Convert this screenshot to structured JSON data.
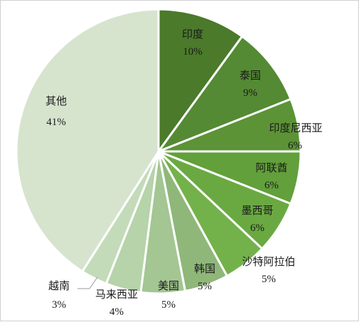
{
  "chart_data": {
    "type": "pie",
    "title": "",
    "slices": [
      {
        "label": "印度",
        "value": 10,
        "value_label": "10%",
        "color": "#4a7a2a"
      },
      {
        "label": "泰国",
        "value": 9,
        "value_label": "9%",
        "color": "#548a33"
      },
      {
        "label": "印度尼西亚",
        "value": 6,
        "value_label": "6%",
        "color": "#5b9336"
      },
      {
        "label": "阿联酋",
        "value": 6,
        "value_label": "6%",
        "color": "#62a03b"
      },
      {
        "label": "墨西哥",
        "value": 6,
        "value_label": "6%",
        "color": "#6aa942"
      },
      {
        "label": "沙特阿拉伯",
        "value": 5,
        "value_label": "5%",
        "color": "#73b24a"
      },
      {
        "label": "韩国",
        "value": 5,
        "value_label": "5%",
        "color": "#8fb77a"
      },
      {
        "label": "美国",
        "value": 5,
        "value_label": "5%",
        "color": "#a3c692"
      },
      {
        "label": "马来西亚",
        "value": 4,
        "value_label": "4%",
        "color": "#b6d3aa"
      },
      {
        "label": "越南",
        "value": 3,
        "value_label": "3%",
        "color": "#c3dbb9"
      },
      {
        "label": "其他",
        "value": 41,
        "value_label": "41%",
        "color": "#d6e4ce"
      }
    ],
    "legend": "none",
    "label_placement": "inside"
  }
}
